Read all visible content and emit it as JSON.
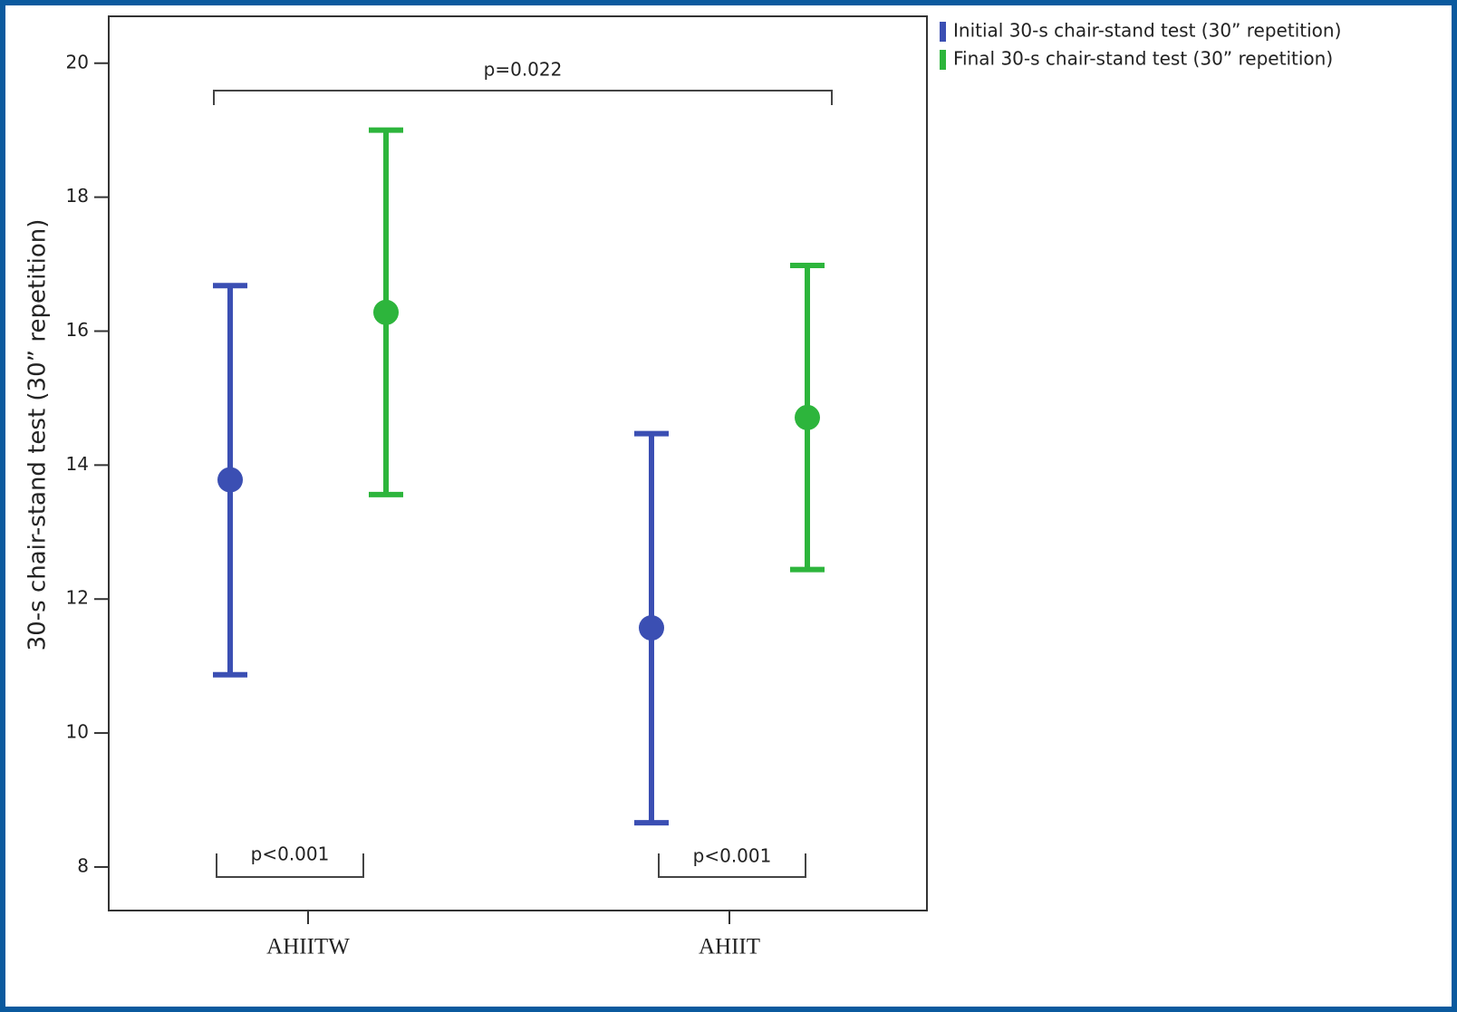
{
  "chart_data": {
    "type": "errorbar",
    "y_label": "30-s chair-stand test (30” repetition)",
    "categories": [
      "AHIITW",
      "AHIIT"
    ],
    "series": [
      {
        "name": "Initial 30-s chair-stand test (30” repetition)",
        "color": "#3b4fb3",
        "values": [
          13.78,
          11.57
        ],
        "lower": [
          10.87,
          8.66
        ],
        "upper": [
          16.68,
          14.47
        ]
      },
      {
        "name": "Final 30-s chair-stand test (30” repetition)",
        "color": "#2db53c",
        "values": [
          16.28,
          14.71
        ],
        "lower": [
          13.56,
          12.44
        ],
        "upper": [
          19.0,
          16.98
        ]
      }
    ],
    "annotations": [
      "p=0.022",
      "p<0.001",
      "p<0.001"
    ],
    "ylim": [
      7.35,
      20.7
    ],
    "yticks": [
      8,
      10,
      12,
      14,
      16,
      18,
      20
    ],
    "grid": false
  }
}
